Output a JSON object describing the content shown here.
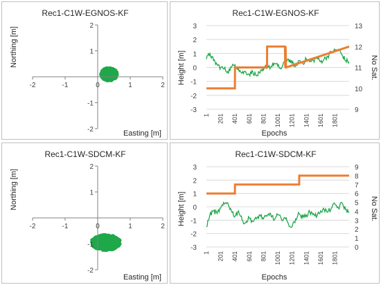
{
  "colors": {
    "position": "#1fa84a",
    "height": "#1fa84a",
    "satellites": "#ed7d31",
    "grid": "#d9d9d9",
    "axis": "#808080"
  },
  "chart_data": [
    {
      "type": "scatter",
      "title": "Rec1-C1W-EGNOS-KF",
      "xlabel": "Easting [m]",
      "ylabel": "Northing [m]",
      "xlim": [
        -2,
        2
      ],
      "ylim": [
        -2,
        2
      ],
      "xticks": [
        "-2",
        "-1",
        "0",
        "1",
        "2"
      ],
      "yticks": [
        "-2",
        "-1",
        "0",
        "1",
        "2"
      ],
      "grid": true,
      "cloud": {
        "center": [
          0.35,
          0.1
        ],
        "spread": [
          0.25,
          0.25
        ],
        "points": 420
      }
    },
    {
      "type": "line",
      "title": "Rec1-C1W-EGNOS-KF",
      "xlabel": "Epochs",
      "ylabel": "Height [m]",
      "y2label": "No Sat.",
      "xlim": [
        1,
        2000
      ],
      "ylim": [
        -3,
        3
      ],
      "y2lim": [
        9,
        13
      ],
      "xticks": [
        "1",
        "201",
        "401",
        "601",
        "801",
        "1001",
        "1201",
        "1401",
        "1601",
        "1801"
      ],
      "yticks": [
        "-3",
        "-2",
        "-1",
        "0",
        "1",
        "2",
        "3"
      ],
      "y2ticks": [
        "9",
        "10",
        "11",
        "12",
        "13"
      ],
      "grid": true,
      "series": [
        {
          "axis": "left",
          "x": [
            1,
            50,
            100,
            150,
            200,
            250,
            300,
            350,
            400,
            450,
            500,
            550,
            600,
            650,
            700,
            750,
            800,
            850,
            900,
            950,
            1000,
            1050,
            1100,
            1150,
            1200,
            1250,
            1300,
            1350,
            1400,
            1450,
            1500,
            1550,
            1600,
            1650,
            1700,
            1750,
            1800,
            1850,
            1900,
            1950,
            2000
          ],
          "y": [
            0.6,
            1.0,
            0.5,
            0.2,
            0.0,
            -0.1,
            -0.3,
            0.0,
            0.2,
            -0.1,
            -0.4,
            -0.3,
            -0.5,
            -0.3,
            -0.6,
            -0.4,
            -0.2,
            0.2,
            0.0,
            0.3,
            0.1,
            -0.1,
            0.4,
            0.6,
            0.3,
            0.1,
            0.5,
            0.3,
            0.6,
            0.4,
            0.5,
            0.7,
            0.4,
            0.6,
            0.8,
            1.1,
            1.2,
            1.3,
            0.9,
            0.5,
            0.4
          ]
        },
        {
          "axis": "right",
          "step": true,
          "x": [
            1,
            400,
            401,
            850,
            851,
            1100,
            1105,
            1110,
            1115,
            2000
          ],
          "y": [
            10,
            10,
            11,
            11,
            12,
            12,
            11,
            12,
            11,
            12
          ]
        }
      ]
    },
    {
      "type": "scatter",
      "title": "Rec1-C1W-SDCM-KF",
      "xlabel": "Easting [m]",
      "ylabel": "Northing [m]",
      "xlim": [
        -2,
        2
      ],
      "ylim": [
        -2,
        2
      ],
      "xticks": [
        "-2",
        "-1",
        "0",
        "1",
        "2"
      ],
      "yticks": [
        "-2",
        "-1",
        "0",
        "1",
        "2"
      ],
      "grid": true,
      "cloud": {
        "center": [
          0.25,
          -0.95
        ],
        "spread": [
          0.45,
          0.3
        ],
        "points": 520
      }
    },
    {
      "type": "line",
      "title": "Rec1-C1W-SDCM-KF",
      "xlabel": "Epochs",
      "ylabel": "Height [m]",
      "y2label": "No Sat.",
      "xlim": [
        1,
        2000
      ],
      "ylim": [
        -3,
        3
      ],
      "y2lim": [
        0,
        9
      ],
      "xticks": [
        "1",
        "201",
        "401",
        "601",
        "801",
        "1001",
        "1201",
        "1401",
        "1601",
        "1801"
      ],
      "yticks": [
        "-3",
        "-2",
        "-1",
        "0",
        "1",
        "2",
        "3"
      ],
      "y2ticks": [
        "0",
        "1",
        "2",
        "3",
        "4",
        "5",
        "6",
        "7",
        "8",
        "9"
      ],
      "grid": true,
      "series": [
        {
          "axis": "left",
          "x": [
            1,
            50,
            100,
            150,
            200,
            250,
            300,
            350,
            400,
            450,
            500,
            550,
            600,
            650,
            700,
            750,
            800,
            850,
            900,
            950,
            1000,
            1050,
            1100,
            1150,
            1200,
            1250,
            1300,
            1350,
            1400,
            1450,
            1500,
            1550,
            1600,
            1650,
            1700,
            1750,
            1800,
            1850,
            1900,
            1950,
            2000
          ],
          "y": [
            -1.5,
            -0.6,
            -0.3,
            -0.5,
            -0.1,
            0.2,
            0.3,
            -0.3,
            -0.7,
            -0.3,
            -1.0,
            -1.2,
            -0.8,
            -1.1,
            -0.9,
            -0.6,
            -0.9,
            -0.7,
            -0.5,
            -1.0,
            -0.6,
            -0.9,
            -0.8,
            -1.3,
            -1.5,
            -0.9,
            -0.5,
            -0.8,
            -0.6,
            -0.4,
            -0.5,
            -0.7,
            -0.3,
            -0.2,
            -0.4,
            -0.1,
            0.2,
            -0.1,
            0.3,
            -0.2,
            -0.4
          ]
        },
        {
          "axis": "right",
          "step": true,
          "x": [
            1,
            400,
            401,
            1300,
            1301,
            2000
          ],
          "y": [
            6,
            6,
            7,
            7,
            8,
            8
          ]
        }
      ]
    }
  ]
}
